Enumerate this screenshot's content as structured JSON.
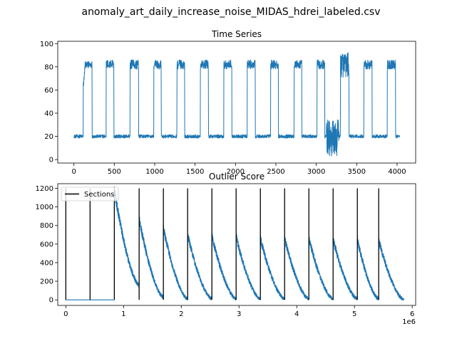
{
  "figure": {
    "title": "anomaly_art_daily_increase_noise_MIDAS_hdrei_labeled.csv"
  },
  "colors": {
    "series": "#1f77b4",
    "sections": "#000000",
    "axes": "#000000"
  },
  "chart_data": [
    {
      "type": "line",
      "title": "Time Series",
      "xlabel": "",
      "ylabel": "",
      "xlim": [
        -200,
        4230
      ],
      "ylim": [
        -3,
        102
      ],
      "xticks": [
        0,
        500,
        1000,
        1500,
        2000,
        2500,
        3000,
        3500,
        4000
      ],
      "yticks": [
        0,
        20,
        40,
        60,
        80,
        100
      ],
      "grid": false,
      "series": [
        {
          "color": "#1f77b4",
          "baseline_value": 20,
          "plateau_value": 82,
          "plateaus": [
            {
              "start": 115,
              "end": 225,
              "rise_from": 62
            },
            {
              "start": 400,
              "end": 495
            },
            {
              "start": 695,
              "end": 800
            },
            {
              "start": 990,
              "end": 1080
            },
            {
              "start": 1275,
              "end": 1370
            },
            {
              "start": 1565,
              "end": 1665
            },
            {
              "start": 1855,
              "end": 1955
            },
            {
              "start": 2145,
              "end": 2245
            },
            {
              "start": 2435,
              "end": 2530
            },
            {
              "start": 2725,
              "end": 2820
            },
            {
              "start": 3010,
              "end": 3105
            },
            {
              "start": 3300,
              "end": 3405,
              "anomalous": true
            },
            {
              "start": 3590,
              "end": 3690
            },
            {
              "start": 3880,
              "end": 3980
            }
          ],
          "anomaly_window": {
            "start": 3125,
            "end": 3280,
            "min": 3,
            "max": 35
          }
        }
      ]
    },
    {
      "type": "line",
      "title": "Outlier Score",
      "xlabel": "",
      "ylabel": "",
      "x_offset_label": "1e6",
      "xlim": [
        -140000,
        6060000
      ],
      "ylim": [
        -60,
        1250
      ],
      "xticks": [
        0,
        1,
        2,
        3,
        4,
        5,
        6
      ],
      "yticks": [
        0,
        200,
        400,
        600,
        800,
        1000,
        1200
      ],
      "grid": false,
      "legend": {
        "position": "top-left",
        "entries": [
          "Sections"
        ]
      },
      "section_lines": [
        {
          "x": 0,
          "y_top": 1200
        },
        {
          "x": 420000,
          "y_top": 1200
        },
        {
          "x": 840000,
          "y_top": 1200
        },
        {
          "x": 1270000,
          "y_top": 1200
        },
        {
          "x": 1690000,
          "y_top": 1200
        },
        {
          "x": 2110000,
          "y_top": 1200
        },
        {
          "x": 2530000,
          "y_top": 1200
        },
        {
          "x": 2950000,
          "y_top": 1200
        },
        {
          "x": 3370000,
          "y_top": 1200
        },
        {
          "x": 3790000,
          "y_top": 1200
        },
        {
          "x": 4210000,
          "y_top": 1200
        },
        {
          "x": 4630000,
          "y_top": 1200
        },
        {
          "x": 5050000,
          "y_top": 1200
        },
        {
          "x": 5420000,
          "y_top": 1200
        }
      ],
      "series": [
        {
          "name": "Outlier Score",
          "color": "#1f77b4",
          "flat_start": 0,
          "flat_end": 840000,
          "flat_value": 0,
          "decay_segments": [
            {
              "start": 840000,
              "end": 1270000,
              "peak": 1190,
              "end_value": 160
            },
            {
              "start": 1270000,
              "end": 1690000,
              "peak": 870,
              "end_value": 30
            },
            {
              "start": 1690000,
              "end": 2110000,
              "peak": 770,
              "end_value": 10
            },
            {
              "start": 2110000,
              "end": 2530000,
              "peak": 700,
              "end_value": 10
            },
            {
              "start": 2530000,
              "end": 2950000,
              "peak": 690,
              "end_value": 10
            },
            {
              "start": 2950000,
              "end": 3370000,
              "peak": 680,
              "end_value": 10
            },
            {
              "start": 3370000,
              "end": 3790000,
              "peak": 660,
              "end_value": 10
            },
            {
              "start": 3790000,
              "end": 4210000,
              "peak": 660,
              "end_value": 10
            },
            {
              "start": 4210000,
              "end": 4630000,
              "peak": 660,
              "end_value": 10
            },
            {
              "start": 4630000,
              "end": 5050000,
              "peak": 650,
              "end_value": 10
            },
            {
              "start": 5050000,
              "end": 5420000,
              "peak": 650,
              "end_value": 10
            },
            {
              "start": 5420000,
              "end": 5860000,
              "peak": 640,
              "end_value": 0
            }
          ]
        }
      ]
    }
  ]
}
